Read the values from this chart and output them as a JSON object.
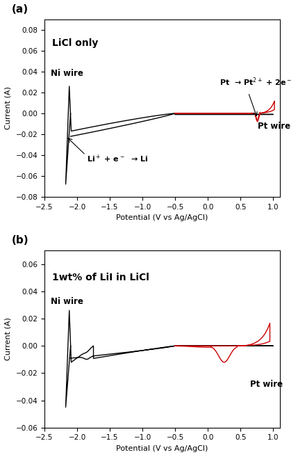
{
  "fig_width": 4.29,
  "fig_height": 6.57,
  "dpi": 100,
  "panel_a": {
    "title": "LiCl only",
    "xlabel": "Potential (V vs Ag/AgCl)",
    "ylabel": "Current (A)",
    "xlim": [
      -2.5,
      1.1
    ],
    "ylim": [
      -0.08,
      0.09
    ],
    "yticks": [
      -0.08,
      -0.06,
      -0.04,
      -0.02,
      0.0,
      0.02,
      0.04,
      0.06,
      0.08
    ],
    "xticks": [
      -2.5,
      -2.0,
      -1.5,
      -1.0,
      -0.5,
      0.0,
      0.5,
      1.0
    ],
    "ni_label": "Ni wire",
    "pt_label": "Pt wire",
    "reaction1_label": "Li$^+$ + e$^-$  → Li",
    "reaction2_label": "Pt  → Pt$^{2+}$ + 2e$^-$"
  },
  "panel_b": {
    "title": "1wt% of LiI in LiCl",
    "xlabel": "Potential (V vs Ag/AgCl)",
    "ylabel": "Current (A)",
    "xlim": [
      -2.5,
      1.1
    ],
    "ylim": [
      -0.06,
      0.07
    ],
    "yticks": [
      -0.06,
      -0.04,
      -0.02,
      0.0,
      0.02,
      0.04,
      0.06
    ],
    "xticks": [
      -2.5,
      -2.0,
      -1.5,
      -1.0,
      -0.5,
      0.0,
      0.5,
      1.0
    ],
    "ni_label": "Ni wire",
    "pt_label": "Pt wire"
  },
  "colors": {
    "ni_wire": "#000000",
    "pt_wire": "#cc0000",
    "background": "#ffffff"
  }
}
